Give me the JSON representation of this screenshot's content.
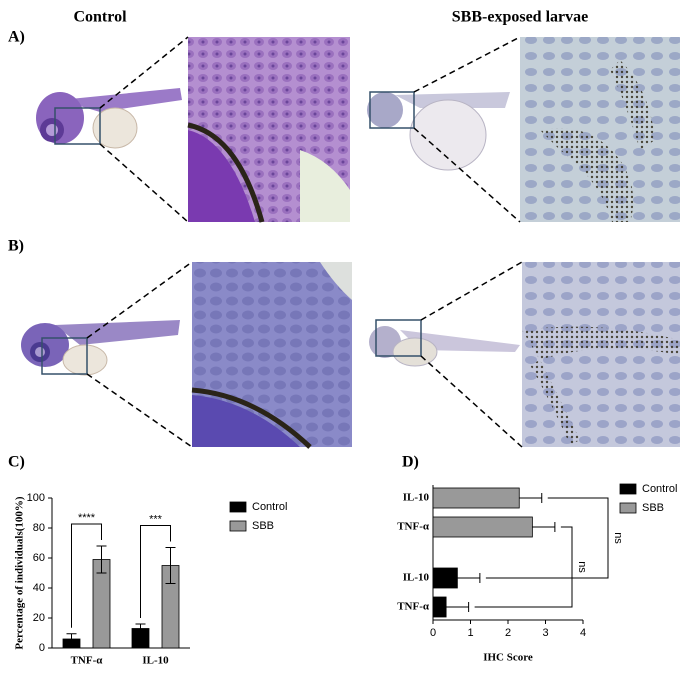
{
  "panels": {
    "control_label": "Control",
    "exposed_label": "SBB-exposed larvae",
    "a_label": "A)",
    "b_label": "B)",
    "c_label": "C)",
    "d_label": "D)"
  },
  "chart_data": [
    {
      "type": "bar",
      "orientation": "vertical",
      "categories": [
        "TNF-α",
        "IL-10"
      ],
      "series": [
        {
          "name": "Control",
          "color": "#000000",
          "values": [
            6,
            13
          ],
          "errors": [
            3.5,
            3
          ]
        },
        {
          "name": "SBB",
          "color": "#999999",
          "values": [
            59,
            55
          ],
          "errors": [
            9,
            12
          ]
        }
      ],
      "ylim": [
        0,
        100
      ],
      "yticks": [
        0,
        20,
        40,
        60,
        80,
        100
      ],
      "ylabel": "Percentage of individuals(100%)",
      "annotations": [
        "****",
        "***"
      ]
    },
    {
      "type": "bar",
      "orientation": "horizontal",
      "categories": [
        "TNF-α",
        "IL-10"
      ],
      "series": [
        {
          "name": "Control",
          "color": "#000000",
          "values": [
            0.35,
            0.65
          ],
          "errors": [
            0.6,
            0.6
          ]
        },
        {
          "name": "SBB",
          "color": "#999999",
          "values": [
            2.65,
            2.3
          ],
          "errors": [
            0.6,
            0.6
          ]
        }
      ],
      "xlim": [
        0,
        4
      ],
      "xticks": [
        0,
        1,
        2,
        3,
        4
      ],
      "xlabel": "IHC Score",
      "annotations": [
        "ns",
        "ns"
      ]
    }
  ]
}
